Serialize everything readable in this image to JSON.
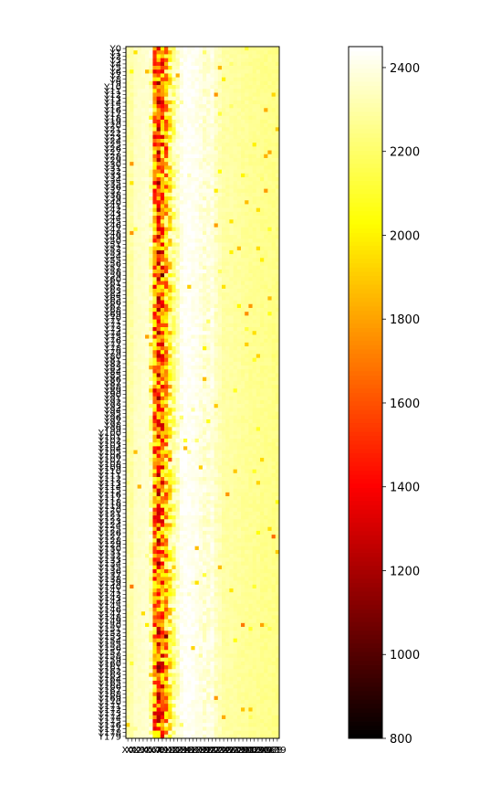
{
  "chart_data": {
    "type": "heatmap",
    "title": "",
    "xlabel": "",
    "ylabel": "",
    "n_rows": 180,
    "n_cols": 40,
    "row_label_prefix": "Y",
    "col_label_prefix": "X",
    "colormap": "hot",
    "vmin": 800,
    "vmax": 2450,
    "colorbar_ticks": [
      800,
      1000,
      1200,
      1400,
      1600,
      1800,
      2000,
      2200,
      2400
    ],
    "column_profile": {
      "x": [
        0,
        1,
        2,
        3,
        4,
        5,
        6,
        7,
        8,
        9,
        10,
        11,
        12,
        13,
        14,
        15,
        16,
        17,
        18,
        19,
        20,
        21,
        22,
        23,
        24,
        25,
        26,
        27,
        28,
        29,
        30,
        31,
        32,
        33,
        34,
        35,
        36,
        37,
        38,
        39
      ],
      "typical_value": [
        2300,
        2300,
        2350,
        2350,
        2360,
        2370,
        2300,
        1750,
        1600,
        1700,
        1900,
        2100,
        2250,
        2350,
        2420,
        2440,
        2440,
        2430,
        2420,
        2400,
        2380,
        2380,
        2400,
        2350,
        2330,
        2300,
        2300,
        2300,
        2290,
        2290,
        2280,
        2280,
        2270,
        2270,
        2270,
        2260,
        2260,
        2260,
        2250,
        2250
      ],
      "variability": [
        30,
        30,
        20,
        20,
        20,
        20,
        120,
        420,
        460,
        450,
        380,
        280,
        150,
        80,
        40,
        30,
        30,
        30,
        30,
        40,
        60,
        50,
        40,
        40,
        30,
        20,
        20,
        20,
        20,
        20,
        20,
        20,
        20,
        20,
        20,
        20,
        20,
        20,
        20,
        20
      ]
    }
  }
}
